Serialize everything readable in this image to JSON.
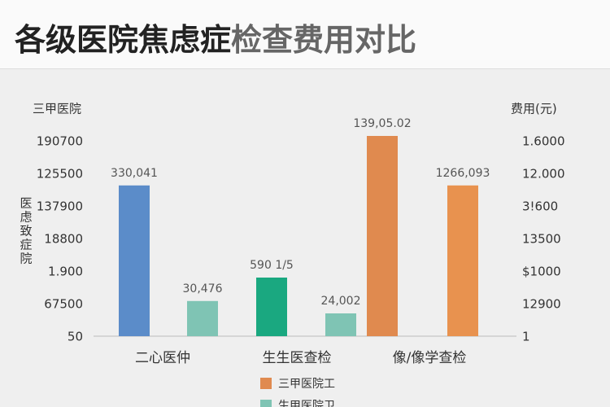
{
  "chart_data": {
    "type": "bar",
    "title": [
      "各级医院焦虑症",
      "检查费用对比"
    ],
    "y_title": "三甲医院",
    "y2_title": "费用(元)",
    "y_axis_label": [
      "医",
      "虑",
      "致",
      "症",
      "院"
    ],
    "categories": [
      "二心医仲",
      "生生医查检",
      "像/像学查检"
    ],
    "series": [
      {
        "name": "三甲医院工",
        "color": "#e08a4f",
        "values": [
          4.63,
          1.8,
          6.15
        ],
        "colors": [
          "#5b8cc9",
          "#1aa880",
          "#e08a4f"
        ],
        "bar_labels": [
          "330,041",
          "590 1/5",
          "139,05.02"
        ]
      },
      {
        "name": "生甲医院卫",
        "color": "#7fc4b4",
        "values": [
          1.08,
          0.7,
          4.63
        ],
        "colors": [
          "#7fc4b4",
          "#7fc4b4",
          "#e8924f"
        ],
        "bar_labels": [
          "30,476",
          "24,002",
          "1266,093"
        ]
      }
    ],
    "ylim": [
      0,
      6.5
    ],
    "yticks": [
      {
        "value": 0,
        "label": "50"
      },
      {
        "value": 1,
        "label": "67500"
      },
      {
        "value": 2,
        "label": "1.900"
      },
      {
        "value": 3,
        "label": "18800"
      },
      {
        "value": 4,
        "label": "137900"
      },
      {
        "value": 5,
        "label": "125500"
      },
      {
        "value": 6,
        "label": "190700"
      }
    ],
    "y2lim": [
      0,
      6.5
    ],
    "y2ticks": [
      {
        "value": 0,
        "label": "1"
      },
      {
        "value": 1,
        "label": "12900"
      },
      {
        "value": 2,
        "label": "$1000"
      },
      {
        "value": 3,
        "label": "13500"
      },
      {
        "value": 4,
        "label": "3!600"
      },
      {
        "value": 5,
        "label": "12.000"
      },
      {
        "value": 6,
        "label": "1.6000"
      }
    ]
  }
}
